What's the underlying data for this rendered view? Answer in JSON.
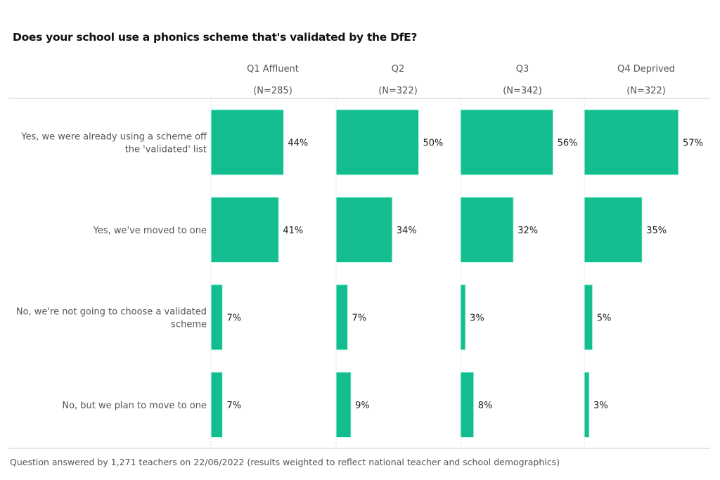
{
  "chart_data": {
    "type": "bar",
    "title": "Does your school use a phonics scheme that's validated by the DfE?",
    "orientation": "horizontal",
    "panels": [
      {
        "name": "Q1 Affluent",
        "n": "(N=285)",
        "values": [
          44,
          41,
          7,
          7
        ]
      },
      {
        "name": "Q2",
        "n": "(N=322)",
        "values": [
          50,
          34,
          7,
          9
        ]
      },
      {
        "name": "Q3",
        "n": "(N=342)",
        "values": [
          56,
          32,
          3,
          8
        ]
      },
      {
        "name": "Q4 Deprived",
        "n": "(N=322)",
        "values": [
          57,
          35,
          5,
          3
        ]
      }
    ],
    "categories": [
      [
        "Yes, we were already using a scheme off",
        "the 'validated' list"
      ],
      [
        "Yes, we've moved to one"
      ],
      [
        "No, we're not going to choose a validated",
        "scheme"
      ],
      [
        "No, but we plan to move to one"
      ]
    ],
    "value_suffix": "%",
    "bar_color": "#13bd8f",
    "grid": false
  },
  "footnote": "Question answered by 1,271 teachers on 22/06/2022 (results weighted to reflect national teacher and school demographics)"
}
